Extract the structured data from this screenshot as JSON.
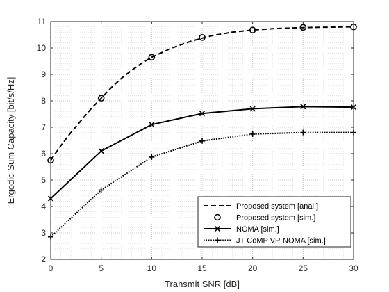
{
  "chart_data": {
    "type": "line",
    "title": "",
    "xlabel": "Transmit SNR [dB]",
    "ylabel": "Ergodic Sum Capacity [bit/s/Hz]",
    "xlim": [
      0,
      30
    ],
    "ylim": [
      2,
      11
    ],
    "xticks": [
      0,
      5,
      10,
      15,
      20,
      25,
      30
    ],
    "yticks": [
      2,
      3,
      4,
      5,
      6,
      7,
      8,
      9,
      10,
      11
    ],
    "grid": "major and minor, dotted",
    "legend_position": "bottom-right",
    "x": [
      0,
      5,
      10,
      15,
      20,
      25,
      30
    ],
    "series": [
      {
        "name": "Proposed system [anal.]",
        "x": [
          0,
          1,
          2,
          3,
          4,
          5,
          6,
          7,
          8,
          9,
          10,
          12,
          14,
          16,
          18,
          20,
          22,
          24,
          26,
          28,
          30
        ],
        "values": [
          5.75,
          6.3,
          6.8,
          7.25,
          7.7,
          8.1,
          8.5,
          8.85,
          9.15,
          9.42,
          9.65,
          10.0,
          10.27,
          10.47,
          10.6,
          10.68,
          10.73,
          10.76,
          10.78,
          10.79,
          10.8
        ],
        "line": "dashed",
        "marker": "none",
        "color": "#000000"
      },
      {
        "name": "Proposed system [sim.]",
        "x": [
          0,
          5,
          10,
          15,
          20,
          25,
          30
        ],
        "values": [
          5.75,
          8.1,
          9.65,
          10.4,
          10.68,
          10.78,
          10.8
        ],
        "line": "none",
        "marker": "circle",
        "color": "#000000"
      },
      {
        "name": "NOMA [sim.]",
        "x": [
          0,
          5,
          10,
          15,
          20,
          25,
          30
        ],
        "values": [
          4.3,
          6.1,
          7.1,
          7.52,
          7.7,
          7.78,
          7.76
        ],
        "line": "solid",
        "marker": "x",
        "color": "#000000"
      },
      {
        "name": "JT-CoMP VP-NOMA [sim.]",
        "x": [
          0,
          5,
          10,
          15,
          20,
          25,
          30
        ],
        "values": [
          2.85,
          4.62,
          5.87,
          6.48,
          6.74,
          6.8,
          6.8
        ],
        "line": "dotted",
        "marker": "plus",
        "color": "#000000"
      }
    ]
  }
}
